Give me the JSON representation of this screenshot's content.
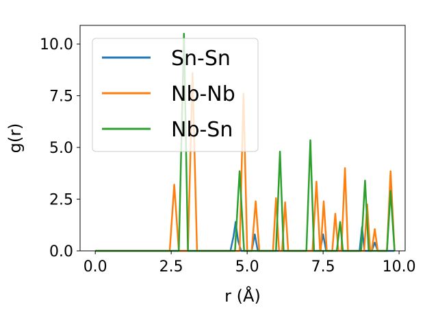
{
  "chart_data": {
    "type": "line",
    "xlabel": "r (Å)",
    "ylabel": "g(r)",
    "xlim": [
      -0.5,
      10.2
    ],
    "ylim": [
      0,
      10.9
    ],
    "xticks": [
      "0.0",
      "2.5",
      "5.0",
      "7.5",
      "10.0"
    ],
    "yticks": [
      "0.0",
      "2.5",
      "5.0",
      "7.5",
      "10.0"
    ],
    "grid": false,
    "legend_position": "upper-left",
    "series": [
      {
        "name": "Sn-Sn",
        "color": "#1f77b4",
        "points": [
          [
            0.0,
            0
          ],
          [
            4.45,
            0
          ],
          [
            4.55,
            0.7
          ],
          [
            4.62,
            1.4
          ],
          [
            4.7,
            0.5
          ],
          [
            4.8,
            0
          ],
          [
            5.15,
            0
          ],
          [
            5.25,
            0.8
          ],
          [
            5.35,
            0
          ],
          [
            7.4,
            0
          ],
          [
            7.5,
            0.8
          ],
          [
            7.6,
            0
          ],
          [
            8.7,
            0
          ],
          [
            8.78,
            1.15
          ],
          [
            8.86,
            0
          ],
          [
            9.1,
            0
          ],
          [
            9.2,
            0.4
          ],
          [
            9.3,
            0
          ],
          [
            9.85,
            0
          ]
        ]
      },
      {
        "name": "Nb-Nb",
        "color": "#ff7f0e",
        "points": [
          [
            0.0,
            0
          ],
          [
            2.45,
            0
          ],
          [
            2.6,
            3.2
          ],
          [
            2.75,
            0
          ],
          [
            3.05,
            0
          ],
          [
            3.2,
            8.6
          ],
          [
            3.35,
            0
          ],
          [
            4.75,
            0
          ],
          [
            4.88,
            7.6
          ],
          [
            5.0,
            0
          ],
          [
            5.15,
            0
          ],
          [
            5.28,
            2.4
          ],
          [
            5.4,
            0
          ],
          [
            5.85,
            0
          ],
          [
            5.95,
            2.55
          ],
          [
            6.05,
            0
          ],
          [
            6.15,
            0
          ],
          [
            6.25,
            2.35
          ],
          [
            6.35,
            0
          ],
          [
            7.15,
            0
          ],
          [
            7.28,
            3.35
          ],
          [
            7.4,
            0
          ],
          [
            7.42,
            0
          ],
          [
            7.52,
            2.4
          ],
          [
            7.62,
            0
          ],
          [
            7.8,
            0
          ],
          [
            7.9,
            1.8
          ],
          [
            8.0,
            0
          ],
          [
            8.1,
            0
          ],
          [
            8.22,
            4.0
          ],
          [
            8.32,
            0
          ],
          [
            8.85,
            0
          ],
          [
            8.95,
            2.25
          ],
          [
            9.05,
            0
          ],
          [
            9.1,
            0
          ],
          [
            9.2,
            1.05
          ],
          [
            9.3,
            0
          ],
          [
            9.6,
            0
          ],
          [
            9.72,
            3.85
          ],
          [
            9.85,
            0
          ]
        ]
      },
      {
        "name": "Nb-Sn",
        "color": "#2ca02c",
        "points": [
          [
            0.0,
            0
          ],
          [
            2.75,
            0
          ],
          [
            2.92,
            10.5
          ],
          [
            3.05,
            0
          ],
          [
            4.6,
            0
          ],
          [
            4.75,
            3.85
          ],
          [
            4.9,
            0
          ],
          [
            5.95,
            0
          ],
          [
            6.08,
            4.8
          ],
          [
            6.2,
            0
          ],
          [
            6.95,
            0
          ],
          [
            7.08,
            5.35
          ],
          [
            7.2,
            0
          ],
          [
            7.95,
            0
          ],
          [
            8.06,
            1.4
          ],
          [
            8.15,
            0
          ],
          [
            8.75,
            0
          ],
          [
            8.88,
            3.4
          ],
          [
            9.0,
            0
          ],
          [
            9.6,
            0
          ],
          [
            9.72,
            2.9
          ],
          [
            9.85,
            0
          ]
        ]
      }
    ]
  }
}
